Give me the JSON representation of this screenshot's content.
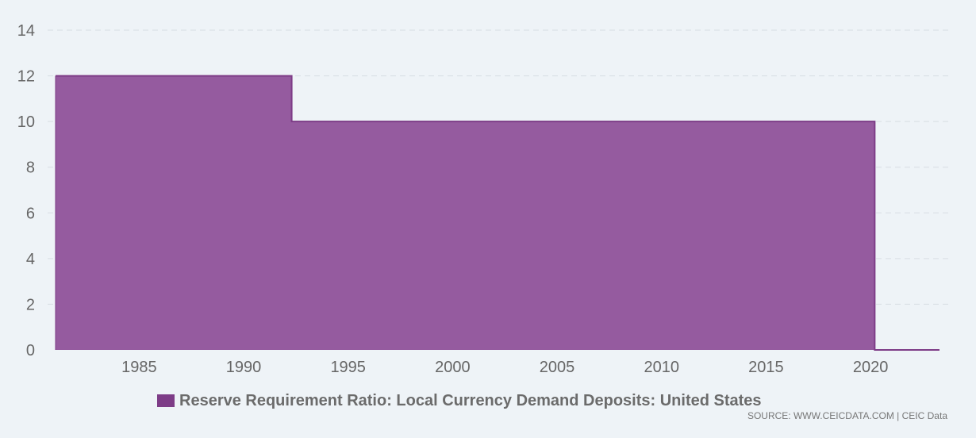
{
  "chart_data": {
    "type": "area",
    "step": true,
    "series": [
      {
        "name": "Reserve Requirement Ratio: Local Currency Demand Deposits: United States",
        "color": "#955b9f",
        "line_color": "#7d3c87",
        "points": [
          {
            "x": 1981.0,
            "y": 12
          },
          {
            "x": 1992.3,
            "y": 12
          },
          {
            "x": 1992.3,
            "y": 10
          },
          {
            "x": 2020.2,
            "y": 10
          },
          {
            "x": 2020.2,
            "y": 0
          },
          {
            "x": 2023.3,
            "y": 0
          }
        ]
      }
    ],
    "xlim": [
      1981.0,
      2023.3
    ],
    "ylim": [
      0,
      14
    ],
    "x_ticks": [
      "1985",
      "1990",
      "1995",
      "2000",
      "2005",
      "2010",
      "2015",
      "2020"
    ],
    "y_ticks": [
      "0",
      "2",
      "4",
      "6",
      "8",
      "10",
      "12",
      "14"
    ],
    "grid": "horizontal dashed",
    "legend_position": "bottom-center"
  },
  "legend": {
    "label": "Reserve Requirement Ratio: Local Currency Demand Deposits: United States",
    "color": "#7d3c87"
  },
  "source": "SOURCE: WWW.CEICDATA.COM | CEIC Data"
}
